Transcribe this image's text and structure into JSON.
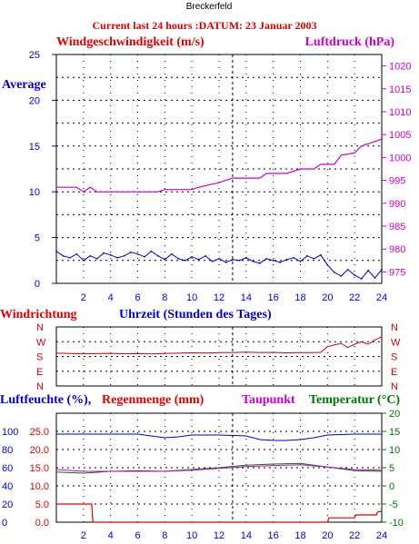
{
  "station": "Breckerfeld",
  "heading": "Current last 24 hours :DATUM: 23 Januar 2003",
  "colors": {
    "wind": "#0000cc",
    "pressure": "#cc00cc",
    "direction": "#cc0000",
    "humidity": "#0000cc",
    "rain": "#dd0000",
    "dewpoint": "#cc00cc",
    "temperature": "#007700",
    "axis": "#0000cc",
    "grid": "#000000",
    "title_red": "#dd0000",
    "title_blue": "#0000cc",
    "title_magenta": "#cc00cc",
    "title_green": "#007700"
  },
  "chart_data": [
    {
      "type": "line",
      "name": "wind-pressure",
      "title_left": "Windgeschwindigkeit (m/s)",
      "title_right": "Luftdruck (hPa)",
      "ylabel_left_tag": "Average",
      "xlabel": "Uhrzeit (Stunden des Tages)",
      "x_ticks": [
        2,
        4,
        6,
        8,
        10,
        12,
        14,
        16,
        18,
        20,
        22,
        24
      ],
      "xlim": [
        0,
        24
      ],
      "ylim_left": [
        0,
        25
      ],
      "y_ticks_left": [
        0,
        5,
        10,
        15,
        20,
        25
      ],
      "ylim_right": [
        972.5,
        1022.5
      ],
      "y_ticks_right": [
        975,
        980,
        985,
        990,
        995,
        1000,
        1005,
        1010,
        1015,
        1020
      ],
      "series": [
        {
          "name": "Windgeschwindigkeit",
          "axis": "left",
          "x": [
            0,
            0.5,
            1,
            1.5,
            2,
            2.5,
            3,
            3.5,
            4,
            4.5,
            5,
            5.5,
            6,
            6.5,
            7,
            7.5,
            8,
            8.5,
            9,
            9.5,
            10,
            10.5,
            11,
            11.5,
            12,
            12.5,
            13,
            13.5,
            14,
            14.5,
            15,
            15.5,
            16,
            16.5,
            17,
            17.5,
            18,
            18.5,
            19,
            19.5,
            20,
            20.5,
            21,
            21.5,
            22,
            22.5,
            23,
            23.5,
            24
          ],
          "y": [
            3.5,
            3.0,
            2.8,
            3.2,
            2.5,
            3.0,
            2.7,
            3.3,
            3.1,
            2.8,
            3.0,
            3.4,
            3.2,
            2.9,
            3.5,
            3.0,
            2.6,
            3.2,
            2.7,
            2.5,
            2.9,
            2.6,
            3.0,
            2.4,
            2.7,
            2.3,
            2.6,
            2.5,
            2.8,
            2.4,
            2.2,
            2.7,
            2.5,
            2.3,
            2.6,
            2.8,
            2.4,
            3.0,
            2.7,
            3.1,
            2.0,
            1.2,
            0.8,
            1.5,
            0.9,
            0.5,
            1.4,
            0.6,
            1.5
          ]
        },
        {
          "name": "Luftdruck",
          "axis": "right",
          "x": [
            0,
            1.5,
            2.0,
            2.5,
            3.0,
            7.5,
            8.0,
            10.0,
            10.5,
            12.0,
            13.0,
            14.0,
            15.0,
            15.5,
            16.5,
            17.0,
            18.0,
            19.0,
            19.5,
            20.5,
            21.0,
            22.0,
            22.5,
            23.5,
            24
          ],
          "y": [
            993.5,
            993.5,
            992.5,
            993.5,
            992.5,
            992.5,
            993.0,
            993.0,
            993.5,
            994.5,
            995.5,
            995.5,
            995.5,
            996.5,
            996.5,
            996.5,
            997.5,
            997.5,
            998.5,
            998.5,
            1000.5,
            1001.0,
            1002.5,
            1003.5,
            1004.0
          ]
        }
      ]
    },
    {
      "type": "line",
      "name": "windrichtung",
      "title_left": "Windrichtung",
      "direction_labels": [
        "N",
        "W",
        "S",
        "E",
        "N"
      ],
      "xlim": [
        0,
        24
      ],
      "series": [
        {
          "name": "Windrichtung",
          "x": [
            0,
            1,
            2,
            3,
            4,
            5,
            6,
            7,
            8,
            9,
            10,
            11,
            12,
            13,
            14,
            15,
            16,
            17,
            18,
            19,
            19.5,
            20,
            20.5,
            21,
            21.5,
            22,
            22.5,
            23,
            23.5,
            24
          ],
          "y": [
            200,
            198,
            196,
            197,
            199,
            196,
            197,
            195,
            198,
            200,
            202,
            201,
            204,
            203,
            206,
            203,
            205,
            202,
            204,
            203,
            205,
            240,
            250,
            260,
            235,
            255,
            270,
            255,
            280,
            300
          ]
        }
      ]
    },
    {
      "type": "line",
      "name": "humidity-rain-temp",
      "title_left_1": "Luftfeuchte (%),",
      "title_left_2": "Regenmenge (mm)",
      "title_mid": "Taupunkt",
      "title_right": "Temperatur (",
      "title_right_unit": "°C)",
      "ylim_hum": [
        0,
        120
      ],
      "y_ticks_hum": [
        0,
        20,
        40,
        60,
        80,
        100
      ],
      "ylim_rain": [
        0.0,
        30.0
      ],
      "y_ticks_rain": [
        "0.0",
        "5.0",
        "10.0",
        "15.0",
        "20.0",
        "25.0"
      ],
      "ylim_temp": [
        -10,
        20
      ],
      "y_ticks_temp": [
        -10,
        -5,
        0,
        5,
        10,
        15,
        20
      ],
      "x_ticks": [
        2,
        4,
        6,
        8,
        10,
        12,
        14,
        16,
        18,
        20,
        22,
        24
      ],
      "series": [
        {
          "name": "Luftfeuchte",
          "axis": "humidity",
          "x": [
            0,
            2,
            4,
            6,
            7,
            8,
            9,
            10,
            12,
            14,
            15,
            16,
            17,
            18,
            19,
            20,
            22,
            24
          ],
          "y": [
            97,
            97,
            97,
            97,
            95,
            93,
            94,
            96,
            96,
            95,
            91,
            90,
            90,
            91,
            93,
            96,
            97,
            97
          ]
        },
        {
          "name": "Regenmenge",
          "axis": "rain",
          "x": [
            0,
            2.6,
            2.7,
            7.9,
            8.0,
            20,
            20.1,
            22,
            22.1,
            23.6,
            23.7,
            24
          ],
          "y": [
            5.0,
            5.0,
            0.0,
            0.0,
            0.0,
            0.0,
            1.2,
            1.2,
            2.0,
            2.0,
            2.8,
            3.0
          ]
        },
        {
          "name": "Taupunkt",
          "axis": "temperature",
          "x": [
            0,
            2,
            4,
            6,
            8,
            10,
            12,
            14,
            16,
            18,
            20,
            22,
            24
          ],
          "y": [
            4.5,
            4.0,
            4.0,
            4.0,
            4.0,
            4.3,
            4.8,
            5.3,
            5.6,
            5.8,
            5.2,
            4.5,
            4.3
          ]
        },
        {
          "name": "Temperatur",
          "axis": "temperature",
          "x": [
            0,
            2,
            4,
            6,
            8,
            10,
            12,
            14,
            16,
            18,
            20,
            22,
            24
          ],
          "y": [
            3.8,
            3.5,
            4.0,
            4.2,
            4.0,
            4.5,
            5.0,
            5.7,
            6.0,
            6.2,
            5.2,
            4.2,
            4.0
          ]
        }
      ]
    }
  ]
}
